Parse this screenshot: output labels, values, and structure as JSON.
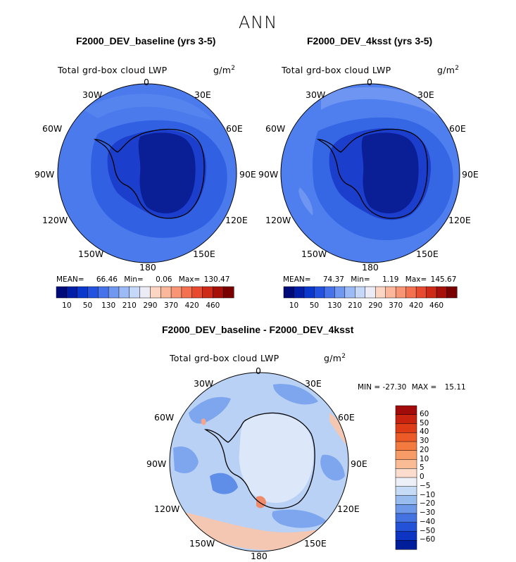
{
  "figure": {
    "title": "ANN",
    "var_label": "Total grd-box cloud LWP",
    "units_base": "g/m",
    "units_exp": "2"
  },
  "lon_labels": {
    "l0": "0",
    "l30e": "30E",
    "l60e": "60E",
    "l90e": "90E",
    "l120e": "120E",
    "l150e": "150E",
    "l180": "180",
    "l150w": "150W",
    "l120w": "120W",
    "l90w": "90W",
    "l60w": "60W",
    "l30w": "30W"
  },
  "panels": [
    {
      "title": "F2000_DEV_baseline (yrs 3-5)",
      "mean_label": "MEAN=",
      "mean": "66.46",
      "min_label": "Min=",
      "min": "0.06",
      "max_label": "Max=",
      "max": "130.47"
    },
    {
      "title": "F2000_DEV_4ksst (yrs 3-5)",
      "mean_label": "MEAN=",
      "mean": "74.37",
      "min_label": "Min=",
      "min": "1.19",
      "max_label": "Max=",
      "max": "145.67"
    },
    {
      "title": "F2000_DEV_baseline - F2000_DEV_4ksst",
      "min_label": "MIN =",
      "min": "-27.30",
      "max_label": "MAX =",
      "max": "15.11"
    }
  ],
  "chart_data": [
    {
      "type": "heatmap",
      "projection": "south-polar-stereographic",
      "title": "F2000_DEV_baseline (yrs 3-5)",
      "variable": "Total grd-box cloud LWP",
      "units": "g/m2",
      "stats": {
        "mean": 66.46,
        "min": 0.06,
        "max": 130.47
      },
      "colorbar": {
        "orientation": "horizontal",
        "ticks": [
          10,
          50,
          130,
          210,
          290,
          370,
          420,
          460
        ],
        "colors": [
          "#000b7a",
          "#001ea8",
          "#0a37cc",
          "#2352e0",
          "#4673ea",
          "#7098f0",
          "#9cbaf5",
          "#c6d8f8",
          "#ececf7",
          "#fcd6c2",
          "#fbb79c",
          "#f89575",
          "#f47150",
          "#e84a30",
          "#cd2a18",
          "#a71008",
          "#7a0000"
        ]
      },
      "regions": [
        {
          "name": "ocean-ring",
          "approx_value": 130,
          "color": "#4b7aed"
        },
        {
          "name": "coastal-band",
          "approx_value": 80,
          "color": "#3160e2"
        },
        {
          "name": "antarctic-coast",
          "approx_value": 40,
          "color": "#1b3ecc"
        },
        {
          "name": "antarctic-interior",
          "approx_value": 5,
          "color": "#0a1e96"
        }
      ]
    },
    {
      "type": "heatmap",
      "projection": "south-polar-stereographic",
      "title": "F2000_DEV_4ksst (yrs 3-5)",
      "variable": "Total grd-box cloud LWP",
      "units": "g/m2",
      "stats": {
        "mean": 74.37,
        "min": 1.19,
        "max": 145.67
      },
      "colorbar": {
        "orientation": "horizontal",
        "ticks": [
          10,
          50,
          130,
          210,
          290,
          370,
          420,
          460
        ],
        "colors": [
          "#000b7a",
          "#001ea8",
          "#0a37cc",
          "#2352e0",
          "#4673ea",
          "#7098f0",
          "#9cbaf5",
          "#c6d8f8",
          "#ececf7",
          "#fcd6c2",
          "#fbb79c",
          "#f89575",
          "#f47150",
          "#e84a30",
          "#cd2a18",
          "#a71008",
          "#7a0000"
        ]
      },
      "regions": [
        {
          "name": "ocean-ring",
          "approx_value": 140,
          "color": "#5282ef"
        },
        {
          "name": "coastal-band",
          "approx_value": 85,
          "color": "#3566e4"
        },
        {
          "name": "antarctic-coast",
          "approx_value": 40,
          "color": "#1b3ecc"
        },
        {
          "name": "antarctic-interior",
          "approx_value": 5,
          "color": "#0a1e96"
        }
      ]
    },
    {
      "type": "heatmap",
      "projection": "south-polar-stereographic",
      "title": "F2000_DEV_baseline - F2000_DEV_4ksst",
      "variable": "Total grd-box cloud LWP",
      "units": "g/m2",
      "stats": {
        "min": -27.3,
        "max": 15.11
      },
      "colorbar": {
        "orientation": "vertical",
        "ticks": [
          60,
          50,
          40,
          30,
          20,
          10,
          5,
          0,
          -5,
          -10,
          -20,
          -30,
          -40,
          -50,
          -60
        ],
        "colors": [
          "#a30a0a",
          "#c8230e",
          "#de3c16",
          "#ec5a28",
          "#f47b40",
          "#f79c66",
          "#f9bc95",
          "#fbdccd",
          "#eef0f8",
          "#c6dbf5",
          "#98bcee",
          "#6e98e8",
          "#4472e0",
          "#2452d6",
          "#0d34c2",
          "#001d9a"
        ]
      },
      "regions": [
        {
          "name": "background",
          "approx_value": -7,
          "color": "#b8d1f4"
        },
        {
          "name": "ocean-patches",
          "approx_value": -12,
          "color": "#7ea6ee"
        },
        {
          "name": "interior",
          "approx_value": -2,
          "color": "#dce8f9"
        },
        {
          "name": "warm-patch",
          "approx_value": 10,
          "color": "#f7a58a"
        }
      ]
    }
  ]
}
